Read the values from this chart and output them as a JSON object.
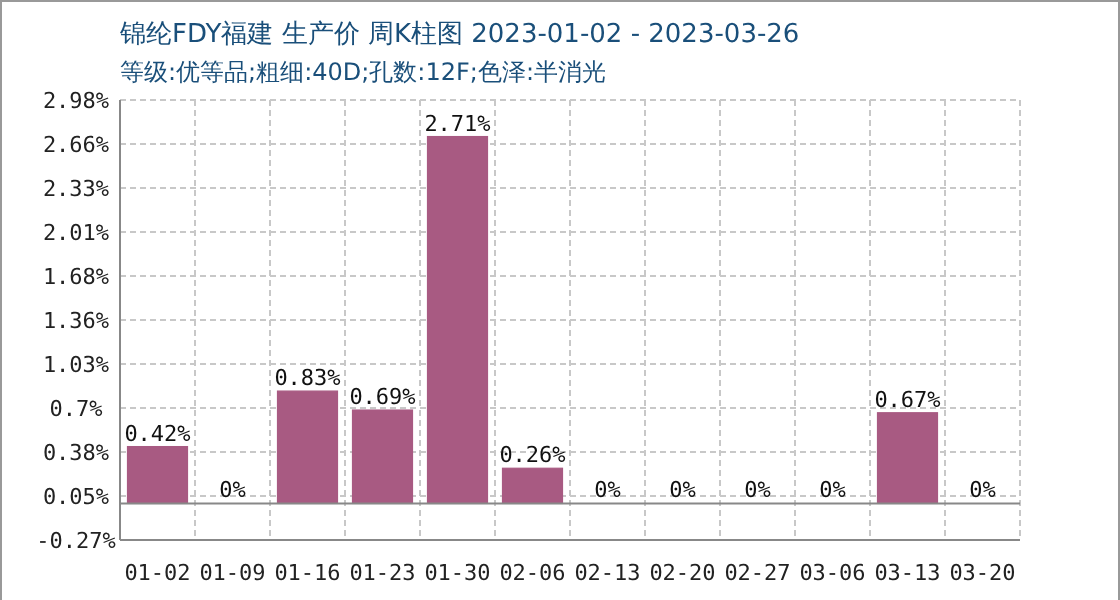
{
  "chart_data": {
    "type": "bar",
    "title": "锦纶FDY福建 生产价 周K柱图 2023-01-02 - 2023-03-26",
    "subtitle": "等级:优等品;粗细:40D;孔数:12F;色泽:半消光",
    "categories": [
      "01-02",
      "01-09",
      "01-16",
      "01-23",
      "01-30",
      "02-06",
      "02-13",
      "02-20",
      "02-27",
      "03-06",
      "03-13",
      "03-20"
    ],
    "series": [
      {
        "color": "#a85a82",
        "values": [
          0.42,
          0,
          0.83,
          0.69,
          2.71,
          0.26,
          0,
          0,
          0,
          0,
          0.67,
          0
        ],
        "value_labels": [
          "0.42%",
          "0%",
          "0.83%",
          "0.69%",
          "2.71%",
          "0.26%",
          "0%",
          "0%",
          "0%",
          "0%",
          "0.67%",
          "0%"
        ]
      }
    ],
    "ylim": [
      -0.27,
      2.98
    ],
    "yticks": [
      {
        "value": -0.27,
        "label": "-0.27%"
      },
      {
        "value": 0.055,
        "label": "0.05%"
      },
      {
        "value": 0.38,
        "label": "0.38%"
      },
      {
        "value": 0.705,
        "label": "0.7%"
      },
      {
        "value": 1.03,
        "label": "1.03%"
      },
      {
        "value": 1.355,
        "label": "1.36%"
      },
      {
        "value": 1.68,
        "label": "1.68%"
      },
      {
        "value": 2.005,
        "label": "2.01%"
      },
      {
        "value": 2.33,
        "label": "2.33%"
      },
      {
        "value": 2.655,
        "label": "2.66%"
      },
      {
        "value": 2.98,
        "label": "2.98%"
      }
    ],
    "grid": true
  }
}
